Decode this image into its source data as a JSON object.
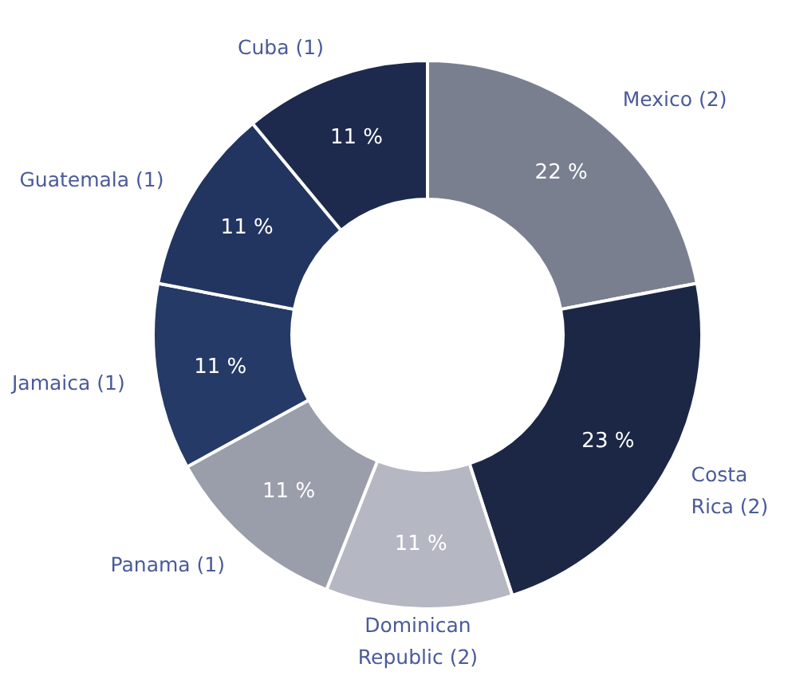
{
  "chart_data": {
    "type": "donut",
    "categories": [
      "Mexico (2)",
      "Costa\nRica (2)",
      "Dominican\nRepublic (2)",
      "Panama (1)",
      "Jamaica (1)",
      "Guatemala (1)",
      "Cuba (1)"
    ],
    "values": [
      22,
      23,
      11,
      11,
      11,
      11,
      11
    ],
    "value_labels": [
      "22 %",
      "23 %",
      "11 %",
      "11 %",
      "11 %",
      "11 %",
      "11 %"
    ],
    "colors": [
      "#7a7f90",
      "#1c2746",
      "#b5b8c2",
      "#9a9eaa",
      "#253a66",
      "#223560",
      "#1d2a4d"
    ],
    "legend": false
  }
}
